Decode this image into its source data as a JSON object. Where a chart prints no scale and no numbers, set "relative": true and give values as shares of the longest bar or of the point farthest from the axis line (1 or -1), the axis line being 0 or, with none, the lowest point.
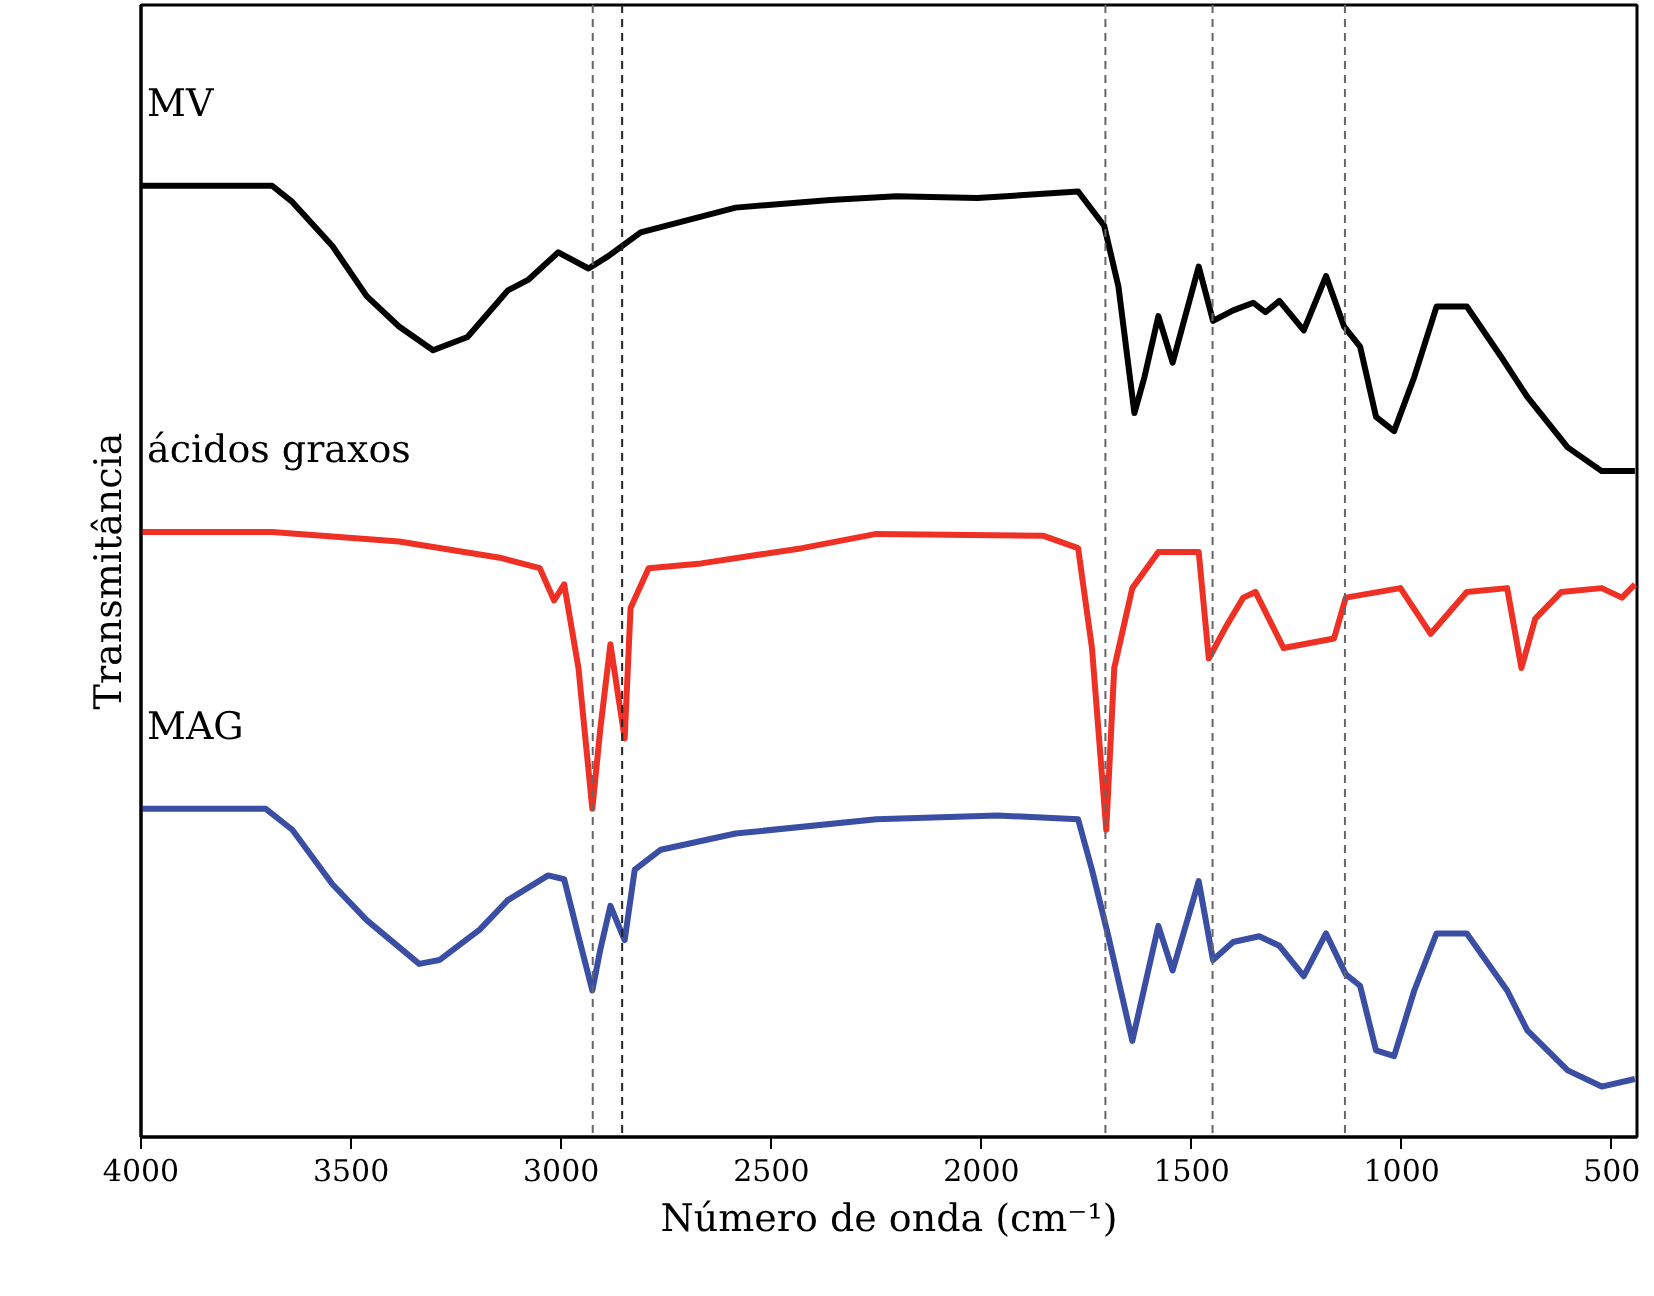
{
  "chart_data": {
    "type": "line",
    "relative": true,
    "xlabel": "Número de onda (cm⁻¹)",
    "ylabel": "Transmitância",
    "xlim": [
      4000,
      440
    ],
    "xticks": [
      4000,
      3500,
      3000,
      2500,
      2000,
      1500,
      1000,
      500
    ],
    "grid": false,
    "marker": "none",
    "line_style": "solid",
    "ref_lines": [
      {
        "axis": "x",
        "value": 2925,
        "color": "#666666",
        "line_style": "dashed"
      },
      {
        "axis": "x",
        "value": 2855,
        "color": "#222222",
        "line_style": "dashed"
      },
      {
        "axis": "x",
        "value": 1705,
        "color": "#666666",
        "line_style": "dashed"
      },
      {
        "axis": "x",
        "value": 1450,
        "color": "#666666",
        "line_style": "dashed"
      },
      {
        "axis": "x",
        "value": 1135,
        "color": "#666666",
        "line_style": "dashed"
      }
    ],
    "series": [
      {
        "name": "MV",
        "color": "#000000",
        "x": [
          4000,
          3688,
          3640,
          3545,
          3463,
          3386,
          3305,
          3223,
          3127,
          3079,
          3007,
          2935,
          2888,
          2811,
          2585,
          2360,
          2202,
          2010,
          1770,
          1708,
          1674,
          1636,
          1612,
          1579,
          1545,
          1483,
          1449,
          1401,
          1353,
          1324,
          1291,
          1233,
          1180,
          1137,
          1099,
          1061,
          1018,
          970,
          917,
          845,
          763,
          701,
          605,
          524,
          445
        ],
        "values": [
          1.0,
          1.0,
          0.983,
          0.937,
          0.884,
          0.852,
          0.827,
          0.841,
          0.89,
          0.901,
          0.93,
          0.913,
          0.926,
          0.951,
          0.977,
          0.985,
          0.989,
          0.987,
          0.994,
          0.958,
          0.894,
          0.761,
          0.799,
          0.863,
          0.814,
          0.915,
          0.858,
          0.869,
          0.877,
          0.867,
          0.879,
          0.848,
          0.905,
          0.852,
          0.831,
          0.757,
          0.742,
          0.799,
          0.873,
          0.873,
          0.82,
          0.778,
          0.725,
          0.7,
          0.7
        ]
      },
      {
        "name": "ácidos graxos",
        "color": "#ee3124",
        "x": [
          4000,
          3688,
          3386,
          3146,
          3051,
          3017,
          2993,
          2959,
          2926,
          2907,
          2883,
          2849,
          2835,
          2792,
          2667,
          2427,
          2250,
          1852,
          1770,
          1737,
          1703,
          1684,
          1641,
          1579,
          1483,
          1459,
          1420,
          1377,
          1348,
          1281,
          1161,
          1133,
          1003,
          931,
          845,
          749,
          715,
          682,
          620,
          524,
          476,
          445
        ],
        "values": [
          0.636,
          0.636,
          0.626,
          0.609,
          0.598,
          0.564,
          0.581,
          0.493,
          0.345,
          0.429,
          0.518,
          0.419,
          0.556,
          0.598,
          0.603,
          0.619,
          0.634,
          0.632,
          0.619,
          0.514,
          0.323,
          0.493,
          0.577,
          0.615,
          0.615,
          0.503,
          0.535,
          0.567,
          0.573,
          0.514,
          0.524,
          0.567,
          0.577,
          0.529,
          0.573,
          0.577,
          0.493,
          0.545,
          0.573,
          0.577,
          0.567,
          0.581
        ]
      },
      {
        "name": "MAG",
        "color": "#3a4ea3",
        "x": [
          4000,
          3703,
          3640,
          3545,
          3463,
          3338,
          3290,
          3194,
          3127,
          3031,
          2993,
          2959,
          2926,
          2907,
          2883,
          2849,
          2825,
          2763,
          2585,
          2250,
          1962,
          1770,
          1737,
          1698,
          1641,
          1579,
          1545,
          1483,
          1449,
          1401,
          1339,
          1291,
          1233,
          1180,
          1133,
          1099,
          1061,
          1018,
          970,
          917,
          845,
          749,
          701,
          605,
          524,
          445
        ],
        "values": [
          0.345,
          0.345,
          0.323,
          0.266,
          0.228,
          0.182,
          0.186,
          0.218,
          0.249,
          0.275,
          0.271,
          0.211,
          0.154,
          0.197,
          0.243,
          0.207,
          0.281,
          0.302,
          0.319,
          0.334,
          0.338,
          0.334,
          0.281,
          0.211,
          0.101,
          0.222,
          0.175,
          0.269,
          0.186,
          0.205,
          0.211,
          0.201,
          0.169,
          0.214,
          0.171,
          0.159,
          0.091,
          0.085,
          0.154,
          0.214,
          0.214,
          0.154,
          0.112,
          0.07,
          0.053,
          0.061
        ]
      }
    ]
  }
}
